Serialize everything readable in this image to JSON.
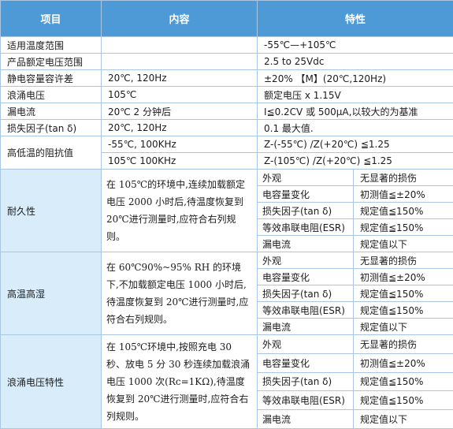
{
  "headers": {
    "item": "项目",
    "content": "内容",
    "property": "特性"
  },
  "rows": [
    {
      "item": "适用温度范围",
      "content": "",
      "property": "-55℃—+105℃"
    },
    {
      "item": "产品额定电压范围",
      "content": "",
      "property": "2.5 to 25Vdc"
    },
    {
      "item": "静电容量容许差",
      "content": "20℃, 120Hz",
      "property": "±20% 【M】(20℃,120Hz)"
    },
    {
      "item": "浪涌电压",
      "content": "105℃",
      "property": "额定电压 x 1.15V"
    },
    {
      "item": "漏电流",
      "content": "20℃ 2 分钟后",
      "property": "I≦0.2CV 或 500μA,以较大的为基准"
    },
    {
      "item": "损失因子(tan δ)",
      "content": "20℃, 120Hz",
      "property": "0.1 最大值."
    }
  ],
  "impedance": {
    "item": "高低温的阻抗值",
    "rows": [
      {
        "content": "-55℃, 100KHz",
        "property": "Z-(-55℃) /Z(+20℃) ≦1.25"
      },
      {
        "content": "105℃ 100KHz",
        "property": "Z-(105℃) /Z(+20℃) ≦1.25"
      }
    ]
  },
  "tests": [
    {
      "item": "耐久性",
      "desc": "在 105℃的环境中,连续加载额定电压 2000 小时后,待温度恢复到 20℃进行测量时,应符合右列规则。",
      "checks": [
        {
          "name": "外观",
          "value": "无显著的损伤"
        },
        {
          "name": "电容量变化",
          "value": "初测值≦±20%"
        },
        {
          "name": "损失因子(tan δ)",
          "value": "规定值≦150%"
        },
        {
          "name": "等效串联电阻(ESR)",
          "value": "规定值≦150%"
        },
        {
          "name": "漏电流",
          "value": "规定值以下"
        }
      ]
    },
    {
      "item": "高温高湿",
      "desc": "在 60℃90%~95% RH 的环境下,不加载额定电压 1000 小时后,待温度恢复到 20℃进行测量时,应符合右列规则。",
      "checks": [
        {
          "name": "外观",
          "value": "无显著的损伤"
        },
        {
          "name": "电容量变化",
          "value": "初测值≦±20%"
        },
        {
          "name": "损失因子(tan δ)",
          "value": "规定值≦150%"
        },
        {
          "name": "等效串联电阻(ESR)",
          "value": "规定值≦150%"
        },
        {
          "name": "漏电流",
          "value": "规定值以下"
        }
      ]
    },
    {
      "item": "浪涌电压特性",
      "desc": "在 105℃环境中,按照充电 30 秒、放电 5 分 30 秒连续加载浪涌电压 1000 次(Rc=1KΩ),待温度恢复到 20℃进行测量时,应符合右列规则。",
      "checks": [
        {
          "name": "外观",
          "value": "无显著的损伤"
        },
        {
          "name": "电容量变化",
          "value": "初测值≦±20%"
        },
        {
          "name": "损失因子(tan δ)",
          "value": "规定值≦150%"
        },
        {
          "name": "等效串联电阻(ESR)",
          "value": "规定值≦150%"
        },
        {
          "name": "漏电流",
          "value": "规定值以下"
        }
      ]
    }
  ],
  "colors": {
    "header_bg": "#4e9ad6",
    "border": "#a9c7e3",
    "label_blue_bg": "#d8ecf9"
  }
}
